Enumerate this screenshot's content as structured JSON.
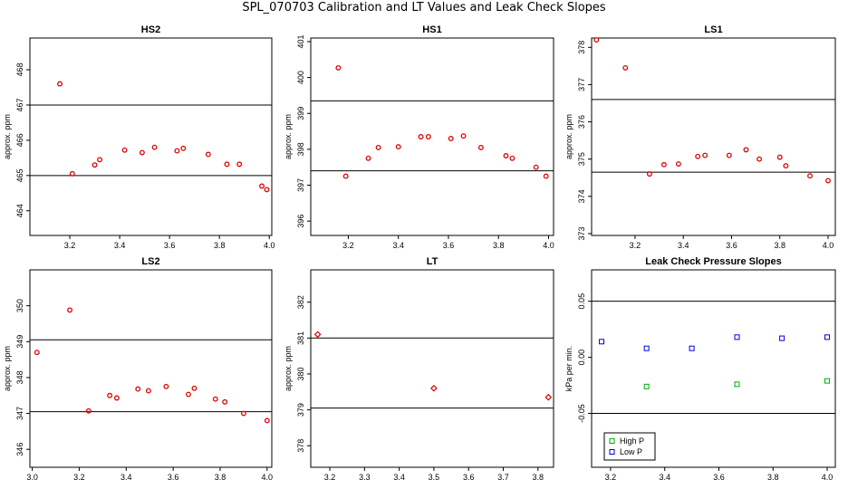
{
  "title": "SPL_070703  Calibration and LT Values and Leak Check Slopes",
  "chart_data": [
    {
      "type": "scatter",
      "title": "HS2",
      "ylabel": "approx. ppm",
      "xlim": [
        3.04,
        4.01
      ],
      "ylim": [
        463.3,
        468.9
      ],
      "xticks": [
        3.2,
        3.4,
        3.6,
        3.8,
        4.0
      ],
      "xtick_labels": [
        "3.2",
        "3.4",
        "3.6",
        "3.8",
        "4.0"
      ],
      "yticks": [
        464,
        465,
        466,
        467,
        468
      ],
      "ytick_labels": [
        "464",
        "465",
        "466",
        "467",
        "468"
      ],
      "hlines": [
        467.0,
        465.0
      ],
      "series": [
        {
          "color": "#dd0000",
          "marker": "circle",
          "x": [
            3.16,
            3.21,
            3.3,
            3.32,
            3.42,
            3.49,
            3.54,
            3.63,
            3.655,
            3.755,
            3.83,
            3.88,
            3.97,
            3.99
          ],
          "y": [
            467.6,
            465.05,
            465.3,
            465.45,
            465.72,
            465.65,
            465.8,
            465.7,
            465.77,
            465.6,
            465.32,
            465.32,
            464.7,
            464.6
          ]
        }
      ]
    },
    {
      "type": "scatter",
      "title": "HS1",
      "ylabel": "approx. ppm",
      "xlim": [
        3.05,
        4.02
      ],
      "ylim": [
        395.6,
        401.1
      ],
      "xticks": [
        3.2,
        3.4,
        3.6,
        3.8,
        4.0
      ],
      "xtick_labels": [
        "3.2",
        "3.4",
        "3.6",
        "3.8",
        "4.0"
      ],
      "yticks": [
        396,
        397,
        398,
        399,
        400,
        401
      ],
      "ytick_labels": [
        "396",
        "397",
        "398",
        "399",
        "400",
        "401"
      ],
      "hlines": [
        399.35,
        397.4
      ],
      "series": [
        {
          "color": "#dd0000",
          "marker": "circle",
          "x": [
            3.16,
            3.19,
            3.28,
            3.32,
            3.4,
            3.49,
            3.52,
            3.61,
            3.66,
            3.73,
            3.83,
            3.855,
            3.95,
            3.99
          ],
          "y": [
            400.27,
            397.25,
            397.75,
            398.05,
            398.07,
            398.35,
            398.35,
            398.3,
            398.37,
            398.05,
            397.82,
            397.75,
            397.5,
            397.25
          ]
        }
      ]
    },
    {
      "type": "scatter",
      "title": "LS1",
      "ylabel": "approx. ppm",
      "xlim": [
        3.02,
        4.03
      ],
      "ylim": [
        372.95,
        378.25
      ],
      "xticks": [
        3.2,
        3.4,
        3.6,
        3.8,
        4.0
      ],
      "xtick_labels": [
        "3.2",
        "3.4",
        "3.6",
        "3.8",
        "4.0"
      ],
      "yticks": [
        373,
        374,
        375,
        376,
        377,
        378
      ],
      "ytick_labels": [
        "373",
        "374",
        "375",
        "376",
        "377",
        "378"
      ],
      "hlines": [
        376.6,
        374.65
      ],
      "series": [
        {
          "color": "#dd0000",
          "marker": "circle",
          "x": [
            3.04,
            3.16,
            3.26,
            3.32,
            3.38,
            3.46,
            3.49,
            3.59,
            3.66,
            3.715,
            3.8,
            3.825,
            3.925,
            4.0
          ],
          "y": [
            378.2,
            377.45,
            374.6,
            374.85,
            374.87,
            375.07,
            375.1,
            375.1,
            375.25,
            375.0,
            375.05,
            374.82,
            374.55,
            374.42
          ]
        }
      ]
    },
    {
      "type": "scatter",
      "title": "LS2",
      "ylabel": "approx. ppm",
      "xlim": [
        2.99,
        4.02
      ],
      "ylim": [
        345.5,
        351.0
      ],
      "xticks": [
        3.0,
        3.2,
        3.4,
        3.6,
        3.8,
        4.0
      ],
      "xtick_labels": [
        "3.0",
        "3.2",
        "3.4",
        "3.6",
        "3.8",
        "4.0"
      ],
      "yticks": [
        346,
        347,
        348,
        349,
        350
      ],
      "ytick_labels": [
        "346",
        "347",
        "348",
        "349",
        "350"
      ],
      "hlines": [
        349.05,
        347.05
      ],
      "series": [
        {
          "color": "#dd0000",
          "marker": "circle",
          "x": [
            3.02,
            3.16,
            3.24,
            3.33,
            3.36,
            3.45,
            3.495,
            3.57,
            3.665,
            3.69,
            3.78,
            3.82,
            3.9,
            4.0
          ],
          "y": [
            348.7,
            349.88,
            347.07,
            347.5,
            347.43,
            347.68,
            347.63,
            347.75,
            347.53,
            347.7,
            347.4,
            347.32,
            347.0,
            346.8
          ]
        }
      ]
    },
    {
      "type": "scatter",
      "title": "LT",
      "ylabel": "approx. ppm",
      "xlim": [
        3.145,
        3.845
      ],
      "ylim": [
        377.4,
        382.9
      ],
      "xticks": [
        3.2,
        3.3,
        3.4,
        3.5,
        3.6,
        3.7,
        3.8
      ],
      "xtick_labels": [
        "3.2",
        "3.3",
        "3.4",
        "3.5",
        "3.6",
        "3.7",
        "3.8"
      ],
      "yticks": [
        378,
        379,
        380,
        381,
        382
      ],
      "ytick_labels": [
        "378",
        "379",
        "380",
        "381",
        "382"
      ],
      "hlines": [
        381.0,
        379.05
      ],
      "series": [
        {
          "color": "#dd0000",
          "marker": "diamond",
          "x": [
            3.165,
            3.5,
            3.83
          ],
          "y": [
            381.1,
            379.6,
            379.35
          ]
        }
      ]
    },
    {
      "type": "scatter",
      "title": "Leak Check Pressure Slopes",
      "ylabel": "kPa per min.",
      "xlim": [
        3.13,
        4.03
      ],
      "ylim": [
        -0.098,
        0.078
      ],
      "xticks": [
        3.2,
        3.4,
        3.6,
        3.8,
        4.0
      ],
      "xtick_labels": [
        "3.2",
        "3.4",
        "3.6",
        "3.8",
        "4.0"
      ],
      "yticks": [
        -0.05,
        0.0,
        0.05
      ],
      "ytick_labels": [
        "-0.05",
        "0.00",
        "0.05"
      ],
      "hlines": [
        0.05,
        -0.05
      ],
      "legend": "bottom-left",
      "series": [
        {
          "name": "High P",
          "color": "#00aa00",
          "marker": "square",
          "x": [
            3.333,
            3.667,
            4.0
          ],
          "y": [
            -0.026,
            -0.024,
            -0.021
          ]
        },
        {
          "name": "Low P",
          "color": "#0000dd",
          "marker": "square",
          "x": [
            3.167,
            3.333,
            3.5,
            3.667,
            3.833,
            4.0
          ],
          "y": [
            0.014,
            0.008,
            0.008,
            0.018,
            0.017,
            0.018
          ]
        }
      ]
    }
  ]
}
